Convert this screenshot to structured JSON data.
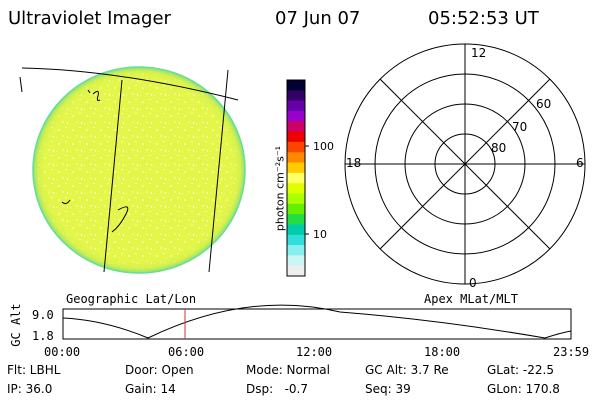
{
  "header": {
    "title": "Ultraviolet Imager",
    "date": "07 Jun 07",
    "time": "05:52:53 UT"
  },
  "colorbar": {
    "unit_label": "photon cm⁻²s⁻¹",
    "tick_100": "100",
    "tick_10": "10",
    "colors": [
      "#000033",
      "#330066",
      "#6600aa",
      "#9900cc",
      "#cc0066",
      "#ee0000",
      "#ff4400",
      "#ff8800",
      "#ffcc00",
      "#ffff66",
      "#ddff00",
      "#aaff00",
      "#66ee00",
      "#22dd44",
      "#00ccaa",
      "#33dddd",
      "#88eeee",
      "#ccf5f5",
      "#eeeeee"
    ]
  },
  "polar": {
    "labels": [
      "12",
      "18",
      "6",
      "0",
      "60",
      "70",
      "80"
    ]
  },
  "section_labels": {
    "geo": "Geographic Lat/Lon",
    "apex": "Apex MLat/MLT"
  },
  "altitude_plot": {
    "axis_label": "GC Alt",
    "y_ticks": [
      "9.0",
      "1.8"
    ],
    "x_ticks": [
      "00:00",
      "06:00",
      "12:00",
      "18:00",
      "23:59"
    ],
    "marker_color": "#cc3333"
  },
  "info": {
    "flt": "Flt: LBHL",
    "ip": "IP: 36.0",
    "door": "Door: Open",
    "gain": "Gain: 14",
    "mode": "Mode: Normal",
    "dsp": "Dsp:   -0.7",
    "gc_alt": "GC Alt: 3.7 Re",
    "seq": "Seq: 39",
    "glat": "GLat: -22.5",
    "glon": "GLon: 170.8"
  }
}
